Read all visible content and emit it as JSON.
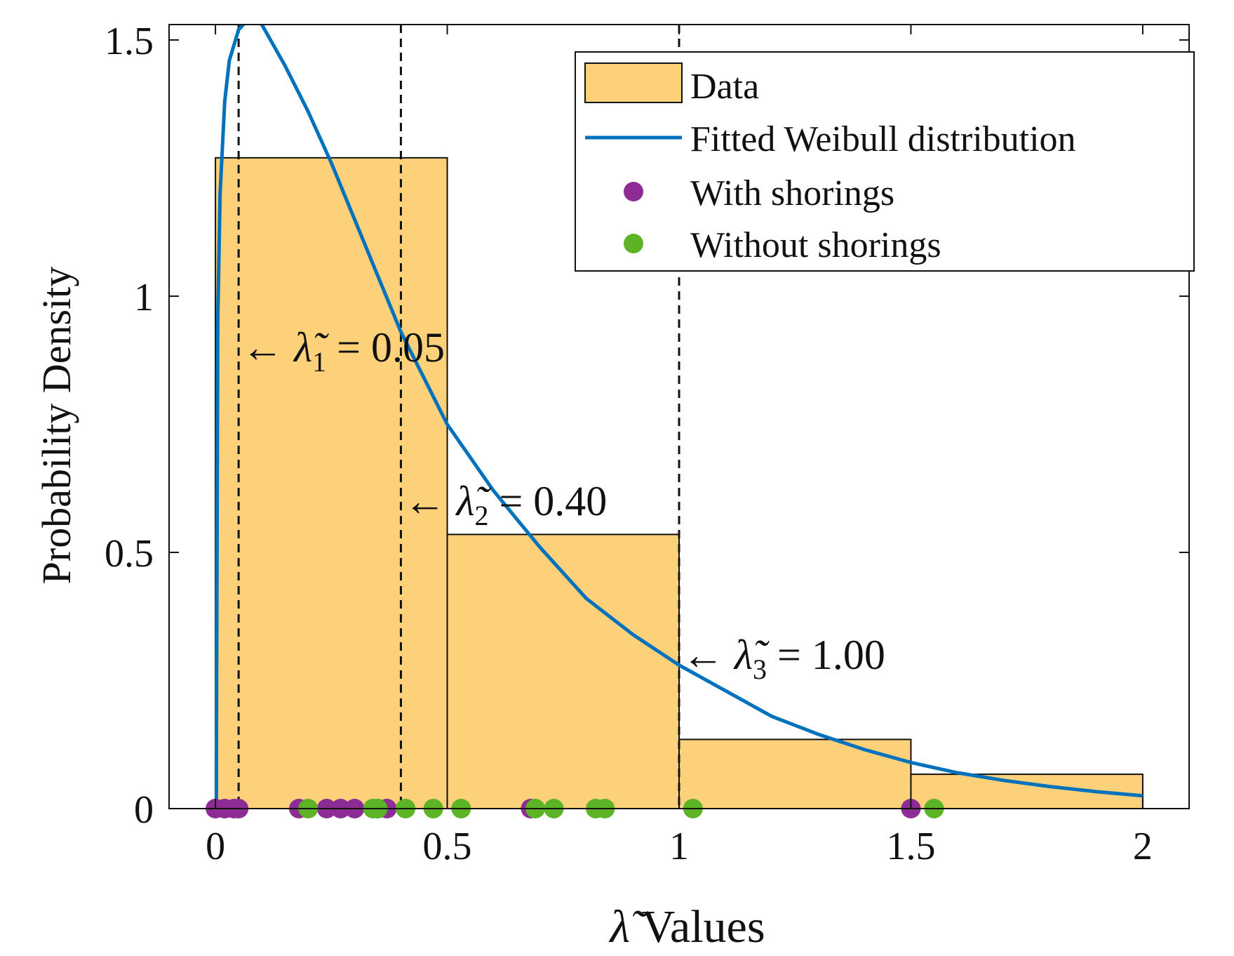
{
  "chart_data": {
    "type": "bar",
    "title": "",
    "xlabel": "λ̃ Values",
    "ylabel": "Probability Density",
    "xlim": [
      -0.1,
      2.1
    ],
    "ylim": [
      0,
      1.53
    ],
    "xticks": [
      0,
      0.5,
      1,
      1.5,
      2
    ],
    "xtick_labels": [
      "0",
      "0.5",
      "1",
      "1.5",
      "2"
    ],
    "yticks": [
      0,
      0.5,
      1,
      1.5
    ],
    "ytick_labels": [
      "0",
      "0.5",
      "1",
      "1.5"
    ],
    "grid": false,
    "legend_position": "top-right",
    "histogram": {
      "name": "Data",
      "bin_edges": [
        0,
        0.5,
        1,
        1.5,
        2
      ],
      "values": [
        1.27,
        0.535,
        0.135,
        0.067
      ],
      "color": "#fdd17a"
    },
    "weibull_fit": {
      "name": "Fitted Weibull distribution",
      "x": [
        0.002,
        0.005,
        0.01,
        0.02,
        0.03,
        0.05,
        0.07,
        0.085,
        0.1,
        0.15,
        0.2,
        0.25,
        0.3,
        0.35,
        0.4,
        0.5,
        0.6,
        0.7,
        0.8,
        0.9,
        1.0,
        1.1,
        1.2,
        1.3,
        1.4,
        1.5,
        1.6,
        1.7,
        1.8,
        1.9,
        2.0
      ],
      "y": [
        0.08,
        0.95,
        1.2,
        1.38,
        1.46,
        1.52,
        1.54,
        1.545,
        1.53,
        1.45,
        1.36,
        1.26,
        1.15,
        1.04,
        0.93,
        0.75,
        0.62,
        0.51,
        0.41,
        0.34,
        0.28,
        0.23,
        0.18,
        0.145,
        0.115,
        0.09,
        0.07,
        0.055,
        0.043,
        0.033,
        0.025
      ],
      "color": "#0072bd"
    },
    "with_shorings": {
      "name": "With shorings",
      "x": [
        0.0,
        0.02,
        0.04,
        0.05,
        0.18,
        0.24,
        0.27,
        0.3,
        0.35,
        0.37,
        0.68,
        1.5
      ],
      "color": "#8e2c96"
    },
    "without_shorings": {
      "name": "Without shorings",
      "x": [
        0.2,
        0.34,
        0.35,
        0.41,
        0.47,
        0.53,
        0.69,
        0.73,
        0.82,
        0.84,
        1.03,
        1.55
      ],
      "color": "#5bb325"
    },
    "reference_lines": [
      {
        "x": 0.05,
        "symbol": "λ̃",
        "subscript": "1",
        "value": "0.05",
        "label_y": 0.9
      },
      {
        "x": 0.4,
        "symbol": "λ̃",
        "subscript": "2",
        "value": "0.40",
        "label_y": 0.6
      },
      {
        "x": 1.0,
        "symbol": "λ̃",
        "subscript": "3",
        "value": "1.00",
        "label_y": 0.3
      }
    ]
  }
}
